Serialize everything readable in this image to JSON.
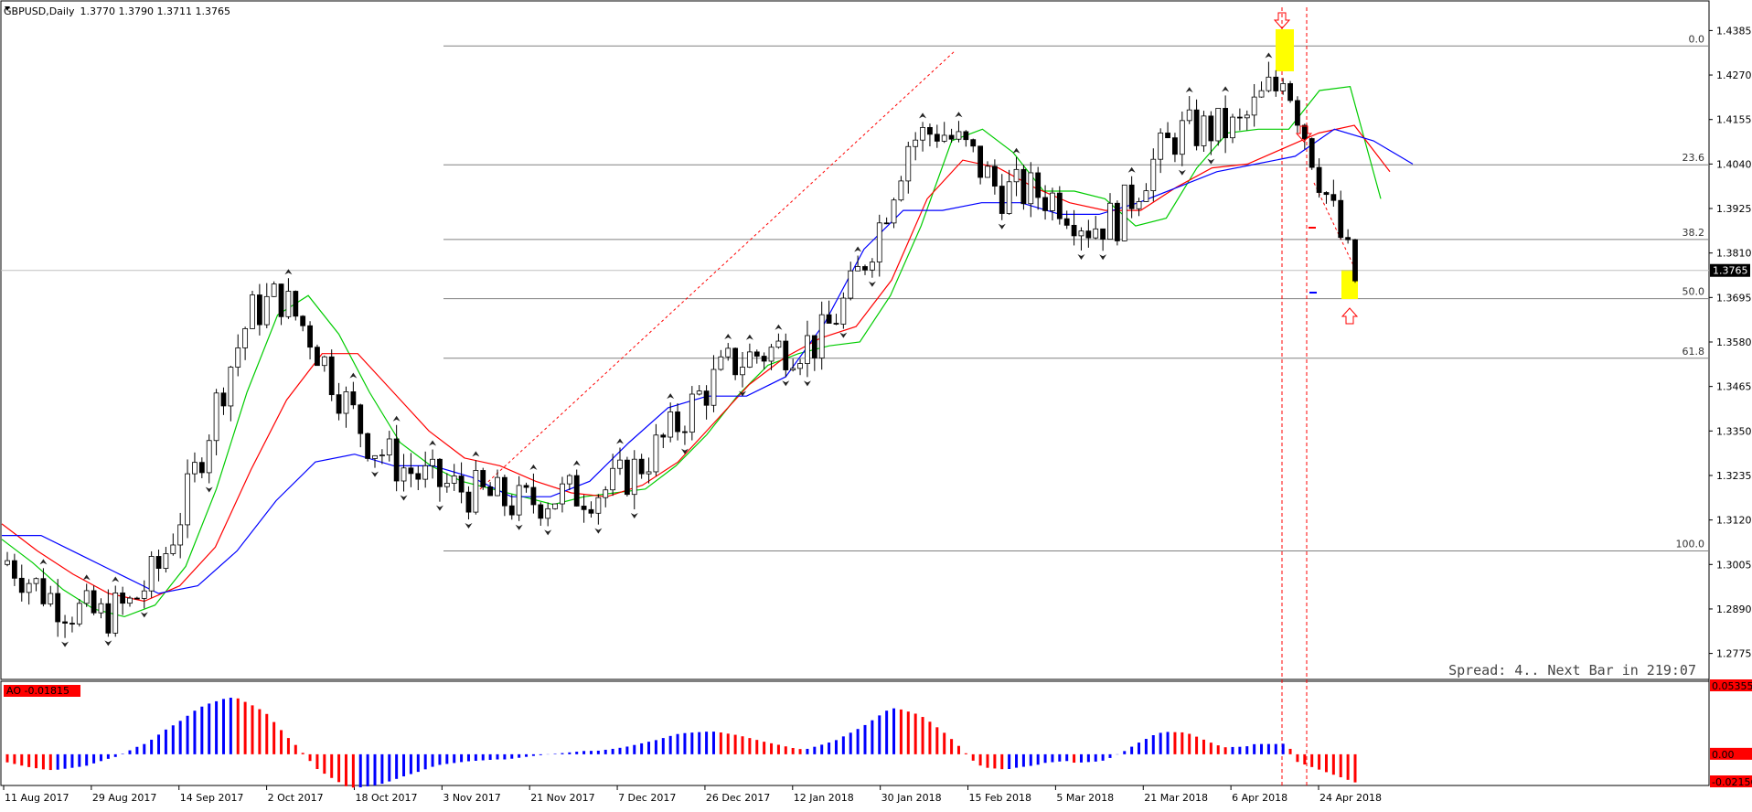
{
  "chart_data": [
    {
      "type": "candlestick",
      "symbol": "GBPUSD,Daily",
      "ohlc_header": "1.3770 1.3790 1.3711 1.3765",
      "current_price": "1.3765",
      "ylim": [
        1.2715,
        1.4445
      ],
      "y_ticks": [
        "1.4385",
        "1.4270",
        "1.4155",
        "1.4040",
        "1.3925",
        "1.3810",
        "1.3695",
        "1.3580",
        "1.3465",
        "1.3350",
        "1.3235",
        "1.3120",
        "1.3005",
        "1.2890",
        "1.2775"
      ],
      "x_ticks": [
        "11 Aug 2017",
        "29 Aug 2017",
        "14 Sep 2017",
        "2 Oct 2017",
        "18 Oct 2017",
        "3 Nov 2017",
        "21 Nov 2017",
        "7 Dec 2017",
        "26 Dec 2017",
        "12 Jan 2018",
        "30 Jan 2018",
        "15 Feb 2018",
        "5 Mar 2018",
        "21 Mar 2018",
        "6 Apr 2018",
        "24 Apr 2018"
      ],
      "fibonacci": [
        {
          "level": "0.0",
          "price": 1.4345
        },
        {
          "level": "23.6",
          "price": 1.4038
        },
        {
          "level": "38.2",
          "price": 1.3845
        },
        {
          "level": "50.0",
          "price": 1.3692
        },
        {
          "level": "61.8",
          "price": 1.3538
        },
        {
          "level": "100.0",
          "price": 1.304
        }
      ],
      "series": [
        {
          "color": "#00cc00",
          "values": [
            1.307,
            1.301,
            1.294,
            1.289,
            1.287,
            1.29,
            1.3,
            1.32,
            1.345,
            1.365,
            1.37,
            1.36,
            1.345,
            1.332,
            1.326,
            1.322,
            1.32,
            1.318,
            1.316,
            1.318,
            1.319,
            1.32,
            1.326,
            1.334,
            1.344,
            1.352,
            1.355,
            1.357,
            1.358,
            1.37,
            1.388,
            1.41,
            1.413,
            1.407,
            1.397,
            1.397,
            1.395,
            1.388,
            1.39,
            1.403,
            1.412,
            1.413,
            1.413,
            1.423,
            1.424,
            1.395
          ]
        },
        {
          "color": "#ff0000",
          "values": [
            1.311,
            1.304,
            1.298,
            1.293,
            1.291,
            1.295,
            1.305,
            1.325,
            1.343,
            1.355,
            1.355,
            1.345,
            1.335,
            1.328,
            1.326,
            1.322,
            1.319,
            1.318,
            1.321,
            1.327,
            1.337,
            1.347,
            1.354,
            1.359,
            1.362,
            1.374,
            1.395,
            1.405,
            1.403,
            1.398,
            1.394,
            1.392,
            1.392,
            1.398,
            1.403,
            1.404,
            1.408,
            1.412,
            1.414,
            1.402
          ]
        },
        {
          "color": "#0000ff",
          "values": [
            1.308,
            1.308,
            1.303,
            1.298,
            1.293,
            1.295,
            1.304,
            1.317,
            1.327,
            1.329,
            1.326,
            1.326,
            1.323,
            1.318,
            1.318,
            1.322,
            1.332,
            1.341,
            1.344,
            1.344,
            1.349,
            1.363,
            1.382,
            1.392,
            1.392,
            1.394,
            1.394,
            1.391,
            1.391,
            1.394,
            1.398,
            1.402,
            1.404,
            1.406,
            1.413,
            1.41,
            1.404
          ]
        }
      ],
      "status_text": "Spread: 4.. Next Bar in 219:07"
    },
    {
      "type": "bar",
      "indicator": "AO",
      "label": "AO -0.01815",
      "y_ticks": [
        "0.05355",
        "0.00",
        "-0.02156"
      ],
      "ylim": [
        -0.02156,
        0.05355
      ],
      "up_color": "#0000ff",
      "down_color": "#ff0000"
    }
  ]
}
